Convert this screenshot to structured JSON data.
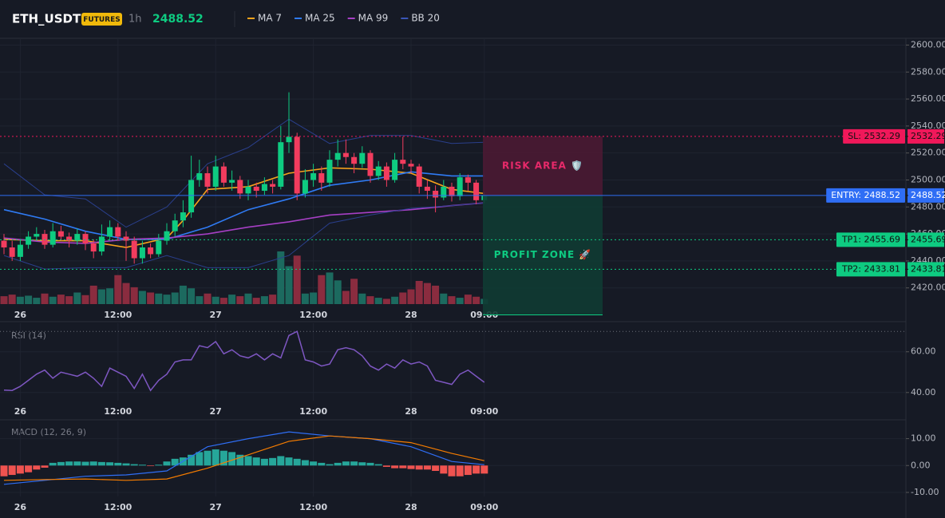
{
  "header": {
    "symbol": "ETH_USDT",
    "badge": "FUTURES",
    "interval": "1h",
    "price": 2488.52
  },
  "chart_data": [
    {
      "type": "candlestick",
      "up_color": "#0ecb81",
      "down_color": "#f23c5e",
      "categories": [
        null,
        null,
        "26",
        null,
        null,
        null,
        null,
        null,
        null,
        null,
        null,
        null,
        null,
        null,
        "12:00",
        null,
        null,
        null,
        null,
        null,
        null,
        null,
        null,
        null,
        null,
        null,
        "27",
        null,
        null,
        null,
        null,
        null,
        null,
        null,
        null,
        null,
        null,
        null,
        "12:00",
        null,
        null,
        null,
        null,
        null,
        null,
        null,
        null,
        null,
        null,
        null,
        "28",
        null,
        null,
        null,
        null,
        null,
        null,
        null,
        null,
        "09:00"
      ],
      "open": [
        2455,
        2450,
        2443,
        2452,
        2458,
        2460,
        2452,
        2462,
        2458,
        2455,
        2460,
        2453,
        2447,
        2458,
        2465,
        2458,
        2455,
        2442,
        2450,
        2445,
        2455,
        2462,
        2470,
        2476,
        2500,
        2505,
        2495,
        2510,
        2498,
        2500,
        2490,
        2495,
        2492,
        2497,
        2495,
        2528,
        2532,
        2490,
        2500,
        2505,
        2498,
        2515,
        2520,
        2517,
        2512,
        2520,
        2503,
        2510,
        2500,
        2515,
        2512,
        2510,
        2495,
        2492,
        2487,
        2495,
        2488,
        2502,
        2498,
        2485
      ],
      "high": [
        2460,
        2455,
        2456,
        2462,
        2465,
        2463,
        2468,
        2466,
        2461,
        2464,
        2462,
        2456,
        2467,
        2470,
        2468,
        2462,
        2458,
        2455,
        2453,
        2460,
        2468,
        2475,
        2485,
        2518,
        2515,
        2510,
        2518,
        2513,
        2507,
        2503,
        2500,
        2498,
        2502,
        2500,
        2540,
        2565,
        2535,
        2508,
        2512,
        2510,
        2522,
        2530,
        2530,
        2520,
        2525,
        2522,
        2514,
        2513,
        2520,
        2532,
        2515,
        2512,
        2500,
        2496,
        2500,
        2498,
        2505,
        2504,
        2500,
        2491
      ],
      "low": [
        2445,
        2440,
        2440,
        2449,
        2455,
        2449,
        2450,
        2455,
        2450,
        2452,
        2448,
        2442,
        2444,
        2455,
        2455,
        2440,
        2438,
        2438,
        2442,
        2443,
        2452,
        2458,
        2465,
        2472,
        2495,
        2490,
        2492,
        2495,
        2492,
        2486,
        2485,
        2487,
        2489,
        2490,
        2493,
        2520,
        2485,
        2487,
        2495,
        2492,
        2495,
        2510,
        2512,
        2505,
        2509,
        2498,
        2500,
        2495,
        2498,
        2508,
        2505,
        2490,
        2486,
        2476,
        2485,
        2484,
        2485,
        2492,
        2482,
        2483
      ],
      "close": [
        2450,
        2443,
        2452,
        2458,
        2460,
        2452,
        2462,
        2458,
        2455,
        2460,
        2453,
        2447,
        2458,
        2465,
        2458,
        2455,
        2442,
        2450,
        2445,
        2455,
        2462,
        2470,
        2476,
        2500,
        2505,
        2495,
        2510,
        2498,
        2500,
        2490,
        2495,
        2492,
        2497,
        2495,
        2528,
        2532,
        2490,
        2500,
        2505,
        2498,
        2515,
        2520,
        2517,
        2512,
        2520,
        2503,
        2510,
        2500,
        2515,
        2512,
        2510,
        2495,
        2492,
        2487,
        2495,
        2488,
        2502,
        2498,
        2485,
        2488.52
      ],
      "volume": [
        15,
        18,
        14,
        16,
        12,
        20,
        14,
        18,
        15,
        22,
        17,
        35,
        28,
        30,
        55,
        40,
        32,
        25,
        22,
        20,
        18,
        22,
        35,
        30,
        15,
        20,
        14,
        12,
        18,
        15,
        20,
        12,
        15,
        18,
        100,
        72,
        92,
        20,
        22,
        55,
        60,
        45,
        25,
        48,
        20,
        15,
        12,
        10,
        14,
        22,
        28,
        44,
        40,
        35,
        20,
        15,
        12,
        18,
        14,
        10
      ],
      "ylim": [
        2408,
        2605
      ],
      "yticks": [
        {
          "value": 2420,
          "label": "2420.00"
        },
        {
          "value": 2440,
          "label": "2440.00"
        },
        {
          "value": 2460,
          "label": "2460.00"
        },
        {
          "value": 2480,
          "label": "2480.00"
        },
        {
          "value": 2500,
          "label": "2500.00"
        },
        {
          "value": 2520,
          "label": "2520.00"
        },
        {
          "value": 2540,
          "label": "2540.00"
        },
        {
          "value": 2560,
          "label": "2560.00"
        },
        {
          "value": 2580,
          "label": "2580.00"
        },
        {
          "value": 2600,
          "label": "2600.00"
        }
      ],
      "grid": true,
      "series": [
        {
          "name": "MA 7",
          "color": "#f7a21b",
          "x": [
            0,
            5,
            10,
            15,
            20,
            22,
            25,
            30,
            35,
            40,
            45,
            50,
            55,
            59
          ],
          "values": [
            2456,
            2455,
            2455,
            2450,
            2457,
            2470,
            2493,
            2495,
            2505,
            2509,
            2508,
            2505,
            2493,
            2490
          ]
        },
        {
          "name": "MA 25",
          "color": "#2f7bf5",
          "x": [
            0,
            5,
            10,
            15,
            20,
            25,
            30,
            35,
            40,
            45,
            50,
            55,
            59
          ],
          "values": [
            2478,
            2471,
            2462,
            2456,
            2456,
            2465,
            2478,
            2486,
            2496,
            2500,
            2506,
            2503,
            2503
          ]
        },
        {
          "name": "MA 99",
          "color": "#a63fc4",
          "x": [
            0,
            5,
            10,
            15,
            20,
            25,
            30,
            35,
            40,
            45,
            50,
            55,
            59
          ],
          "values": [
            2457,
            2454,
            2453,
            2456,
            2457,
            2460,
            2465,
            2469,
            2474,
            2476,
            2478,
            2481,
            2483
          ]
        },
        {
          "name": "BB 20",
          "color": "#2a3f8c",
          "x": [
            0,
            5,
            10,
            15,
            20,
            25,
            30,
            35,
            40,
            45,
            50,
            55,
            59
          ],
          "values": [
            2512,
            2489,
            2486,
            2465,
            2480,
            2512,
            2524,
            2545,
            2527,
            2533,
            2533,
            2527,
            2528
          ],
          "lower": [
            2444,
            2434,
            2435,
            2435,
            2444,
            2435,
            2435,
            2444,
            2468,
            2474,
            2479,
            2481,
            2483
          ]
        }
      ],
      "levels": [
        {
          "label": "SL: 2532.29",
          "value": 2532.29,
          "color": "#f0185a",
          "dash": true
        },
        {
          "label": "ENTRY: 2488.52",
          "value": 2488.52,
          "color": "#2f6ef5",
          "dash": false
        },
        {
          "label": "TP1: 2455.69",
          "value": 2455.69,
          "color": "#0ecb81",
          "dash": true
        },
        {
          "label": "TP2: 2433.81",
          "value": 2433.81,
          "color": "#0ecb81",
          "dash": true
        }
      ],
      "zones": [
        {
          "label": "RISK AREA 🛡️",
          "from": 2532.29,
          "to": 2488.52,
          "color": "#4a1a33",
          "text_color": "#e8296a"
        },
        {
          "label": "PROFIT ZONE 🚀",
          "from": 2488.52,
          "to": 2400,
          "color": "#0f3b33",
          "text_color": "#0ecb81"
        }
      ]
    },
    {
      "type": "line",
      "title": "RSI (14)",
      "color": "#7e57c2",
      "values": [
        41.2,
        41,
        43,
        46,
        49,
        51,
        47,
        50,
        49,
        48,
        50,
        47,
        43,
        52,
        50,
        48,
        42,
        49,
        41,
        46,
        49,
        55,
        56,
        56,
        63,
        62,
        65,
        59,
        61,
        58,
        57,
        59,
        56,
        59,
        57,
        68,
        70,
        56,
        55,
        53,
        54,
        61,
        62,
        61,
        58,
        53,
        51,
        54,
        52,
        56,
        54,
        55,
        53,
        46,
        45,
        44,
        49,
        51,
        48,
        45
      ],
      "ylim": [
        36,
        74
      ],
      "yticks": [
        {
          "value": 40,
          "label": "40.00"
        },
        {
          "value": 60,
          "label": "60.00"
        }
      ],
      "hlines": [
        70
      ]
    },
    {
      "type": "macd",
      "title": "MACD (12, 26, 9)",
      "up_color": "#26a69a",
      "down_color": "#ef5350",
      "histogram": [
        -4,
        -3.5,
        -3,
        -2.5,
        -1.5,
        -0.8,
        1,
        1.3,
        1.5,
        1.5,
        1.4,
        1.5,
        1.3,
        1.2,
        1,
        0.8,
        0.5,
        0.3,
        -0.2,
        0.3,
        1.5,
        2.5,
        3,
        4,
        5,
        5.5,
        6,
        5.5,
        5,
        4,
        3.5,
        3,
        2.5,
        2.8,
        3.5,
        3,
        2.5,
        2,
        1.5,
        1,
        0.5,
        1,
        1.5,
        1.5,
        1.2,
        1,
        0.5,
        -0.5,
        -1,
        -1,
        -1.3,
        -1.5,
        -1.5,
        -2,
        -3,
        -4,
        -4,
        -3.5,
        -3,
        -3
      ],
      "series": [
        {
          "color": "#2f6ef5",
          "x": [
            0,
            5,
            10,
            15,
            20,
            25,
            30,
            35,
            40,
            45,
            50,
            55,
            59
          ],
          "values": [
            -7,
            -5.5,
            -4,
            -3.5,
            -2,
            7,
            10,
            12.5,
            11,
            10,
            7,
            1.5,
            0.3
          ]
        },
        {
          "color": "#f57c00",
          "x": [
            0,
            5,
            10,
            15,
            20,
            25,
            30,
            35,
            40,
            45,
            50,
            55,
            59
          ],
          "values": [
            -5.5,
            -5.2,
            -5,
            -5.5,
            -5,
            -1,
            4,
            9,
            11,
            10,
            8.5,
            4.5,
            1.8
          ]
        }
      ],
      "ylim": [
        -11.5,
        16.4
      ],
      "yticks": [
        {
          "value": -10,
          "label": "-10.00"
        },
        {
          "value": 0,
          "label": "0.00"
        },
        {
          "value": 10,
          "label": "10.00"
        }
      ]
    }
  ]
}
